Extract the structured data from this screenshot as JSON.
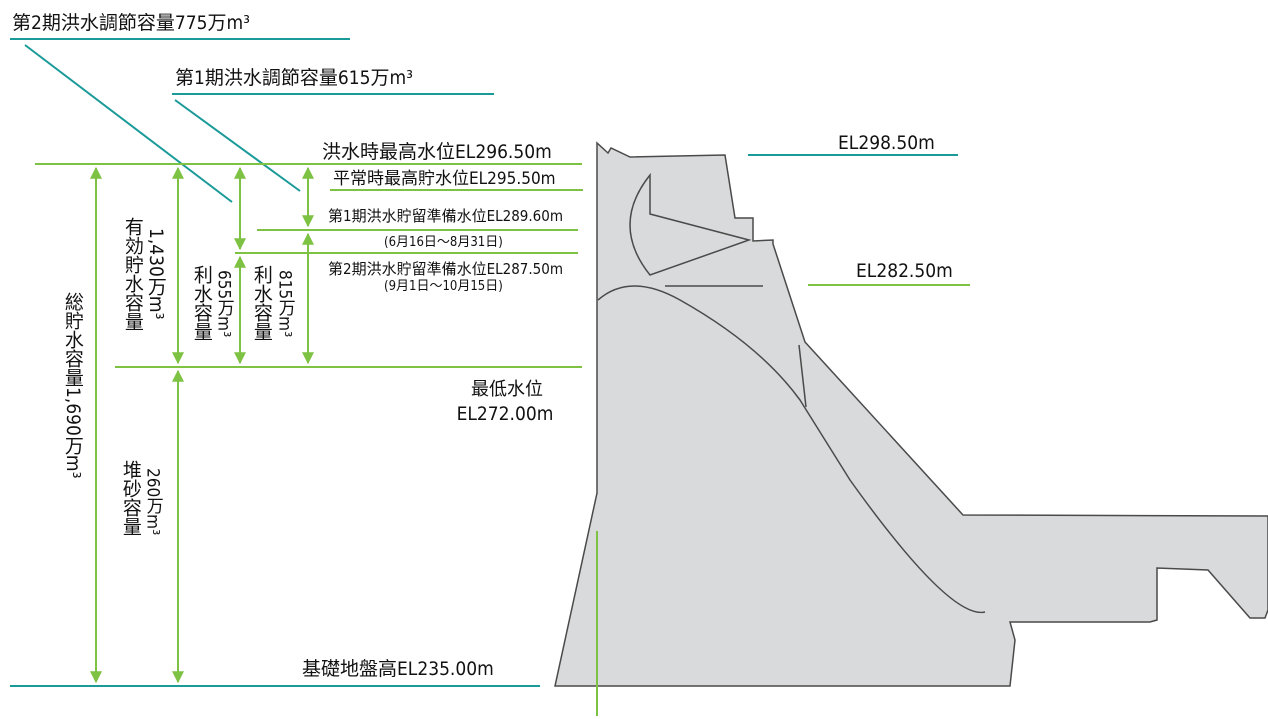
{
  "colors": {
    "green": "#7dc242",
    "teal": "#1a9a98",
    "dam_fill": "#d9dadb",
    "dam_outline": "#4a4a4a",
    "text": "#111111"
  },
  "labels": {
    "flood_capacity_2": "第2期洪水調節容量775万m³",
    "flood_capacity_1": "第1期洪水調節容量615万m³",
    "flood_max_level": "洪水時最高水位EL296.50m",
    "normal_max_level": "平常時最高貯水位EL295.50m",
    "reserve_level_1": "第1期洪水貯留準備水位EL289.60m",
    "reserve_period_1": "(6月16日～8月31日)",
    "reserve_level_2": "第2期洪水貯留準備水位EL287.50m",
    "reserve_period_2": "(9月1日～10月15日)",
    "crest_el": "EL298.50m",
    "gallery_el": "EL282.50m",
    "min_level_title": "最低水位",
    "min_level_value": "EL272.00m",
    "foundation_level": "基礎地盤高EL235.00m",
    "total_storage_title": "総貯水容量1,690万m³",
    "effective_storage_title": "有効貯水容量",
    "effective_storage_value": "1,430万m³",
    "utility_1_title": "利水容量",
    "utility_1_value": "655万m³",
    "utility_2_title": "利水容量",
    "utility_2_value": "815万m³",
    "sediment_title": "堆砂容量",
    "sediment_value": "260万m³"
  }
}
